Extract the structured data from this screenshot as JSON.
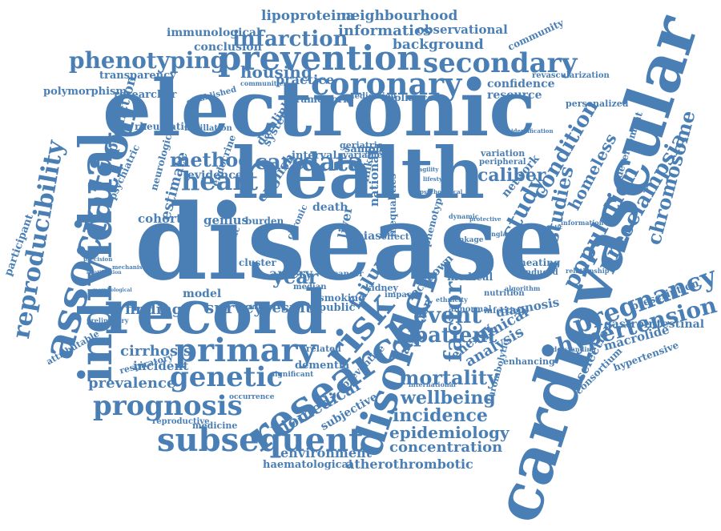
{
  "colors": {
    "word": "#4a7fb5",
    "background": "#ffffff"
  },
  "words": [
    "disease",
    "cardiovascular",
    "electronic",
    "health",
    "record",
    "individual",
    "association",
    "research",
    "disorder",
    "prevention",
    "coronary",
    "secondary",
    "phenotyping",
    "infarction",
    "risk",
    "primary",
    "subsequent",
    "genetic",
    "prognosis",
    "heart",
    "data",
    "care",
    "method",
    "reproducibility",
    "pregnancy",
    "hypertension",
    "population",
    "preeclampsia",
    "chromosome",
    "event",
    "patient",
    "factor",
    "mortality",
    "wellbeing",
    "incidence",
    "epidemiology",
    "concentration",
    "atherothrombotic",
    "environment",
    "haematological",
    "biomedical",
    "subjective",
    "study",
    "condition",
    "studies",
    "homeless",
    "year",
    "survey",
    "result",
    "finding",
    "model",
    "cirrhosis",
    "incident",
    "prevalence",
    "estimate",
    "evidence",
    "cohort",
    "genius",
    "english",
    "caliber",
    "housing",
    "informatics",
    "neighbourhood",
    "lipoproteina",
    "observational",
    "immunological",
    "conclusion",
    "background",
    "community",
    "revascularization",
    "confidence",
    "resource",
    "personalized",
    "transparency",
    "practice",
    "polymorphism",
    "researcher",
    "established",
    "framework",
    "medication",
    "appliance",
    "prediction",
    "rheumatic",
    "fibrillation",
    "datalink",
    "system",
    "interval",
    "sample",
    "variable",
    "geriatric",
    "identification",
    "development",
    "variation",
    "peripheral",
    "network",
    "information",
    "diagnosis",
    "nutrition",
    "algorithm",
    "infectious",
    "abnormal",
    "heating",
    "induced",
    "relationship",
    "prescription",
    "gastrointestinal",
    "macrolide",
    "consortium",
    "hypertensive",
    "selection",
    "understanding",
    "enhancing",
    "clinical",
    "analysis",
    "energy",
    "failure",
    "validation",
    "preventive",
    "international",
    "thrombolytic",
    "lockdown",
    "phenotype",
    "national",
    "inequalities",
    "death",
    "kidney",
    "smoking",
    "public",
    "medical",
    "impact",
    "dementia",
    "related",
    "respiratory",
    "reproductive",
    "medicine",
    "attributable",
    "preliminary",
    "psychiatric",
    "neurological",
    "endocrine",
    "participant",
    "communities",
    "artery",
    "cluster",
    "median",
    "liver",
    "cancer",
    "linked",
    "bias",
    "effect",
    "dynamic",
    "burden",
    "chronic",
    "scientific",
    "significant",
    "occurrence",
    "linkage",
    "england",
    "characteristic",
    "ethnicity",
    "protective",
    "diabetes",
    "mental",
    "fragility",
    "lifestyle",
    "psychological",
    "mechanistic",
    "morphological",
    "stratification",
    "precision"
  ]
}
